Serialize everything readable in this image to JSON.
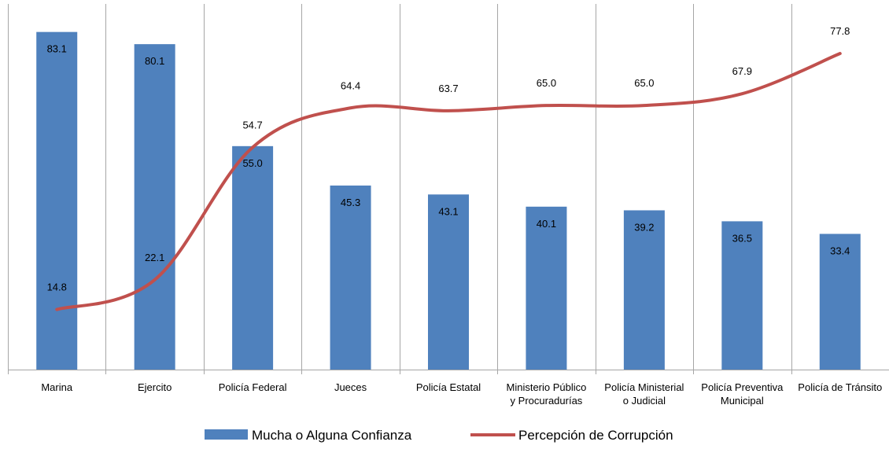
{
  "chart_data": {
    "type": "bar",
    "categories": [
      [
        "Marina"
      ],
      [
        "Ejercito"
      ],
      [
        "Policía Federal"
      ],
      [
        "Jueces"
      ],
      [
        "Policía Estatal"
      ],
      [
        "Ministerio Público",
        "y Procuradurías"
      ],
      [
        "Policía Ministerial",
        "o Judicial"
      ],
      [
        "Policía Preventiva",
        "Municipal"
      ],
      [
        "Policía de Tránsito"
      ]
    ],
    "series": [
      {
        "name": "Mucha o Alguna Confianza",
        "type": "bar",
        "color": "#4f81bd",
        "values": [
          83.1,
          80.1,
          55.0,
          45.3,
          43.1,
          40.1,
          39.2,
          36.5,
          33.4
        ],
        "labels": [
          "83.1",
          "80.1",
          "55.0",
          "45.3",
          "43.1",
          "40.1",
          "39.2",
          "36.5",
          "33.4"
        ]
      },
      {
        "name": "Percepción de Corrupción",
        "type": "line",
        "smooth": true,
        "color": "#c0504d",
        "values": [
          14.8,
          22.1,
          54.7,
          64.4,
          63.7,
          65.0,
          65.0,
          67.9,
          77.8
        ],
        "labels": [
          "14.8",
          "22.1",
          "54.7",
          "64.4",
          "63.7",
          "65.0",
          "65.0",
          "67.9",
          "77.8"
        ]
      }
    ],
    "ylim": [
      0,
      90
    ],
    "grid": "vertical category separators",
    "legend_position": "bottom"
  }
}
